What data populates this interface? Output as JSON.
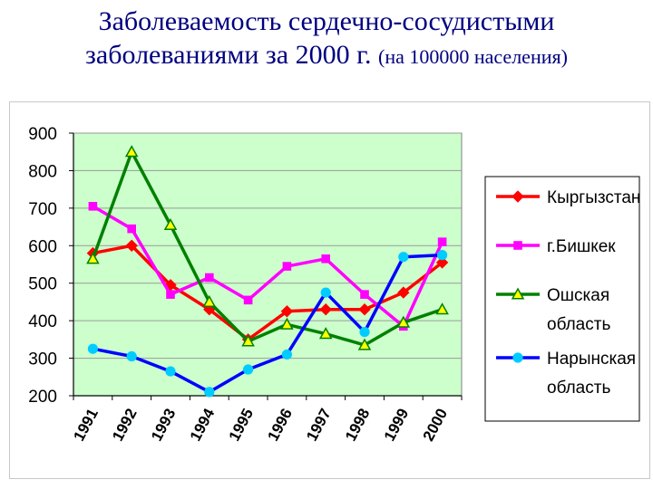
{
  "title": {
    "line1": "Заболеваемость сердечно-сосудистыми",
    "line2_main": "заболеваниями за 2000 г.",
    "line2_sub": "(на 100000 населения)"
  },
  "chart_data": {
    "type": "line",
    "title": "Заболеваемость сердечно-сосудистыми заболеваниями за 2000 г. (на 100000 населения)",
    "xlabel": "",
    "ylabel": "",
    "categories": [
      "1991",
      "1992",
      "1993",
      "1994",
      "1995",
      "1996",
      "1997",
      "1998",
      "1999",
      "2000"
    ],
    "ylim": [
      200,
      900
    ],
    "yticks": [
      200,
      300,
      400,
      500,
      600,
      700,
      800,
      900
    ],
    "grid": "horizontal",
    "legend_position": "right",
    "plot_background": "#ccffcc",
    "series": [
      {
        "name": "Кыргызстан",
        "legend_lines": [
          "Кыргызстан"
        ],
        "color": "#ff0000",
        "marker": "diamond",
        "values": [
          580,
          600,
          495,
          430,
          350,
          425,
          430,
          430,
          475,
          555
        ]
      },
      {
        "name": "г.Бишкек",
        "legend_lines": [
          "г.Бишкек"
        ],
        "color": "#ff00ff",
        "marker": "square",
        "values": [
          705,
          645,
          470,
          515,
          455,
          545,
          565,
          470,
          385,
          610
        ]
      },
      {
        "name": "Ошская область",
        "legend_lines": [
          "Ошская",
          "область"
        ],
        "color": "#008000",
        "marker": "triangle",
        "values": [
          565,
          850,
          655,
          450,
          345,
          390,
          365,
          335,
          395,
          430
        ]
      },
      {
        "name": "Нарынская область",
        "legend_lines": [
          "Нарынская",
          "область"
        ],
        "color": "#0000ff",
        "marker": "circle",
        "values": [
          325,
          305,
          265,
          210,
          270,
          310,
          475,
          370,
          570,
          575
        ]
      }
    ]
  }
}
